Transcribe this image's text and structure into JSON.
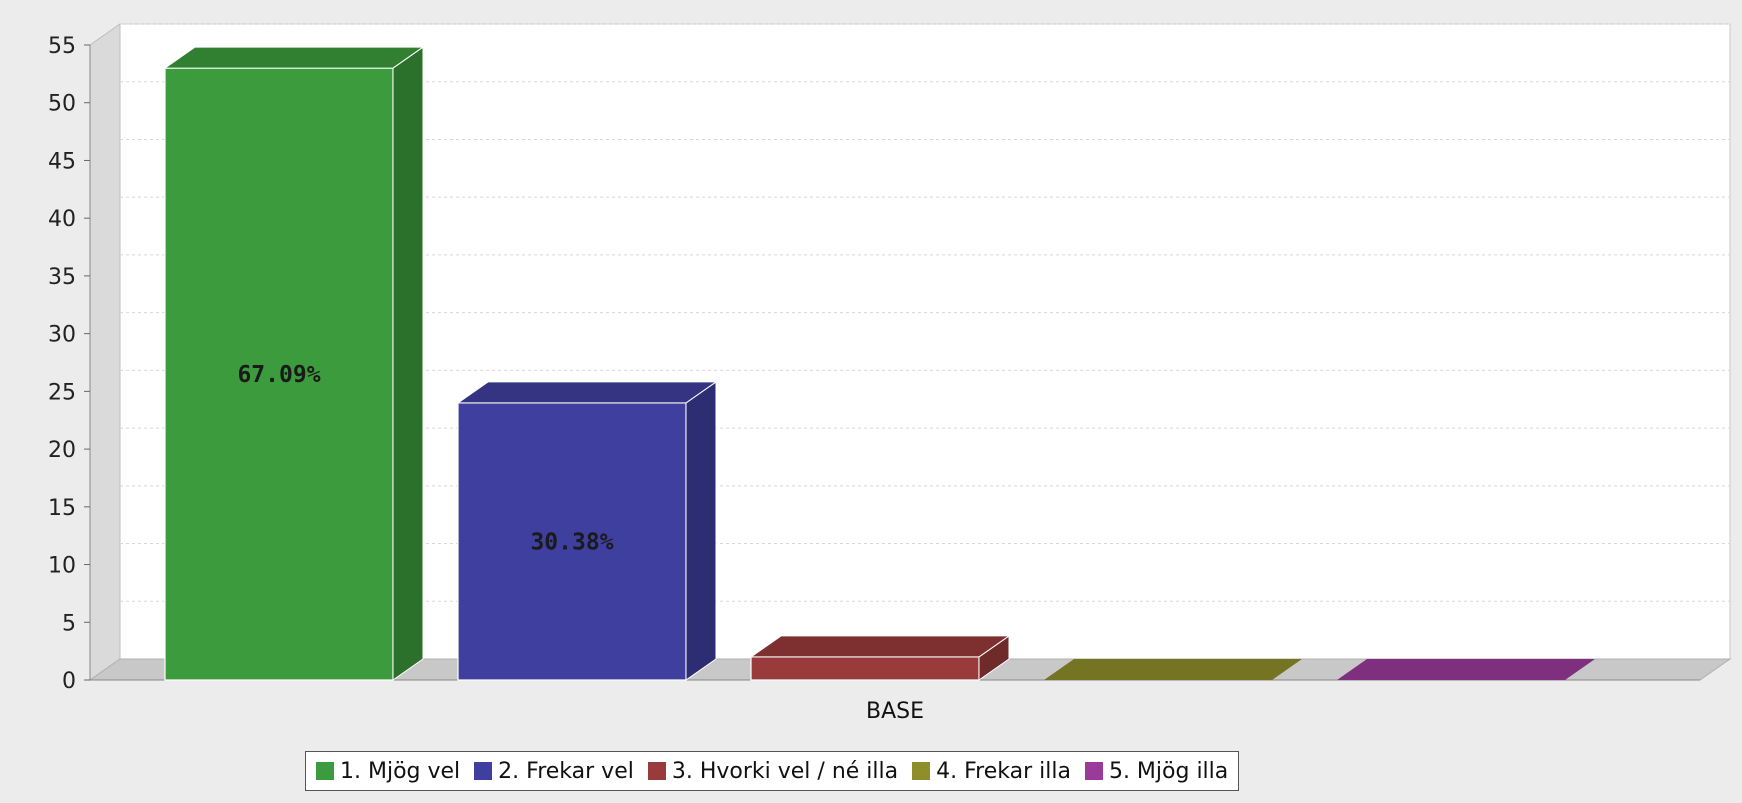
{
  "chart_data": {
    "type": "bar",
    "style": "3d",
    "categories": [
      "BASE"
    ],
    "series": [
      {
        "name": "1. Mjög vel",
        "value": 53,
        "label": "67.09%",
        "color": "#3c9b3c"
      },
      {
        "name": "2. Frekar vel",
        "value": 24,
        "label": "30.38%",
        "color": "#3f3fa0"
      },
      {
        "name": "3. Hvorki vel / né illa",
        "value": 2,
        "label": "",
        "color": "#9a3b3b"
      },
      {
        "name": "4. Frekar illa",
        "value": 0,
        "label": "",
        "color": "#8e8e2a"
      },
      {
        "name": "5. Mjög illa",
        "value": 0,
        "label": "",
        "color": "#9a3a9a"
      }
    ],
    "ylim": [
      0,
      55
    ],
    "yticks": [
      "0",
      "5",
      "10",
      "15",
      "20",
      "25",
      "30",
      "35",
      "40",
      "45",
      "50",
      "55"
    ],
    "grid": true,
    "legend_position": "bottom",
    "title": "",
    "xlabel": "",
    "ylabel": ""
  }
}
